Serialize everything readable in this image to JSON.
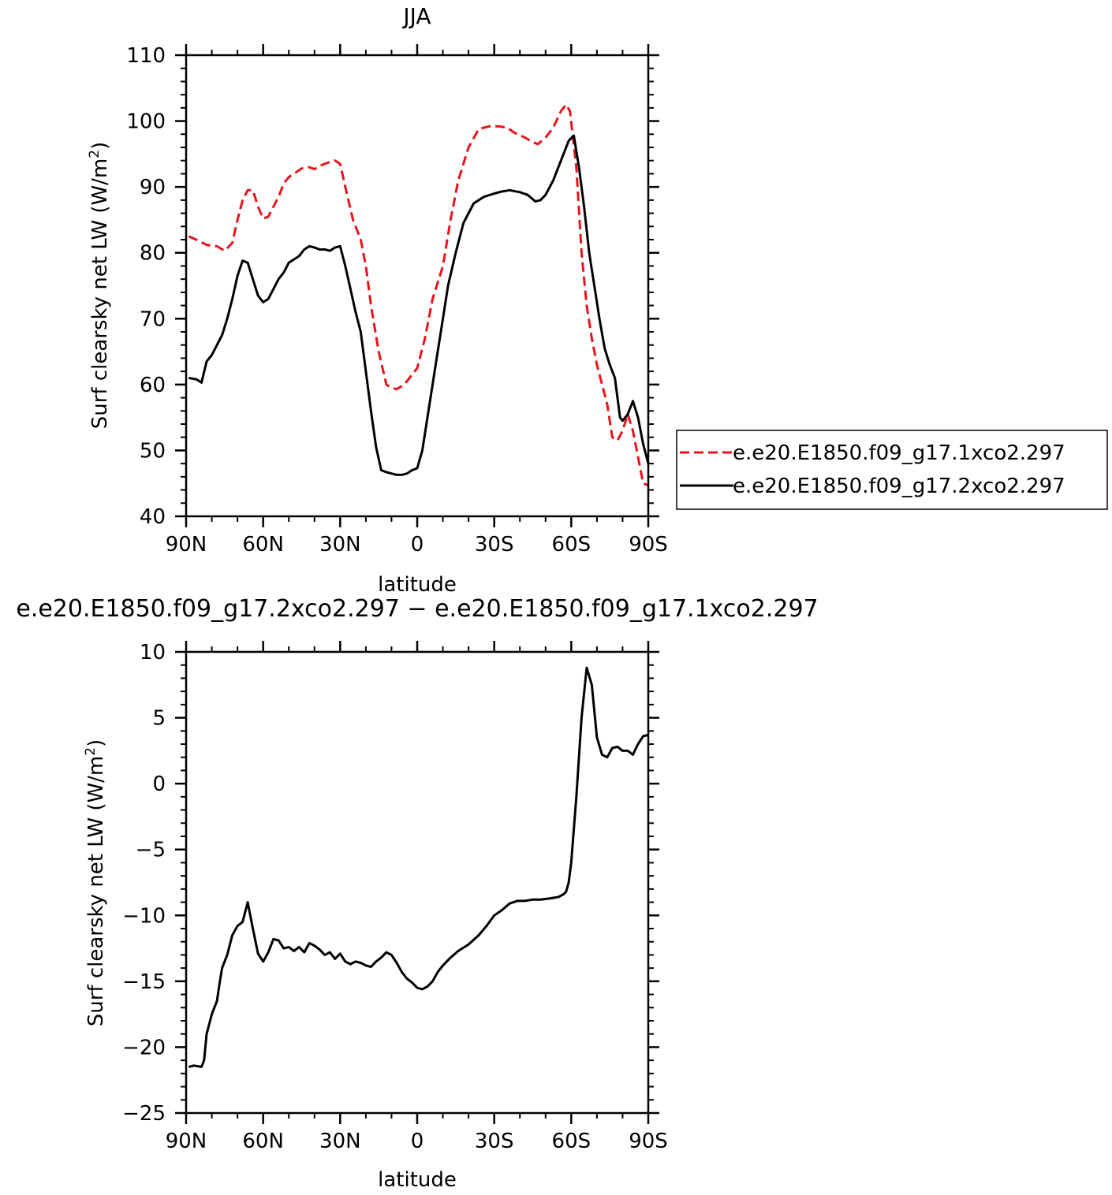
{
  "chart_data": [
    {
      "type": "line",
      "title": "JJA",
      "xlabel": "latitude",
      "ylabel": "Surf clearsky net LW (W/m²)",
      "xlim": [
        90,
        -90
      ],
      "ylim": [
        40,
        110
      ],
      "xticks": [
        90,
        60,
        30,
        0,
        -30,
        -60,
        -90
      ],
      "xtick_labels": [
        "90N",
        "60N",
        "30N",
        "0",
        "30S",
        "60S",
        "90S"
      ],
      "yticks": [
        40,
        50,
        60,
        70,
        80,
        90,
        100,
        110
      ],
      "ytick_labels": [
        "40",
        "50",
        "60",
        "70",
        "80",
        "90",
        "100",
        "110"
      ],
      "legend_position": "right",
      "series": [
        {
          "name": "e.e20.E1850.f09_g17.1xco2.297",
          "color": "#e8131b",
          "dash": "dashed",
          "x": [
            89,
            85,
            82,
            78,
            75,
            72,
            70,
            68,
            66,
            64,
            62,
            60,
            58,
            56,
            54,
            52,
            50,
            48,
            45,
            42,
            40,
            38,
            36,
            34,
            32,
            30,
            28,
            25,
            22,
            20,
            18,
            15,
            12,
            10,
            8,
            5,
            2,
            0,
            -3,
            -6,
            -10,
            -13,
            -16,
            -20,
            -24,
            -28,
            -32,
            -35,
            -38,
            -42,
            -45,
            -47,
            -50,
            -53,
            -56,
            -58,
            -59.5,
            -62,
            -64,
            -66,
            -68,
            -70,
            -72,
            -74,
            -76,
            -78,
            -80,
            -82,
            -84,
            -86,
            -88,
            -90
          ],
          "y": [
            82.5,
            81.8,
            81.2,
            81,
            80.3,
            81.5,
            85,
            88,
            89.5,
            89.5,
            87,
            85.2,
            85.5,
            87,
            88.5,
            90.5,
            91.5,
            92,
            92.8,
            93,
            92.7,
            93.2,
            93.5,
            93.8,
            94,
            93.5,
            90,
            85,
            82,
            78,
            72,
            65,
            60,
            59.5,
            59.3,
            60,
            61.5,
            62.5,
            67,
            73,
            78,
            85,
            91,
            96,
            98.8,
            99.2,
            99.2,
            99,
            98.2,
            97.5,
            96.8,
            96.5,
            97.5,
            99,
            101.5,
            102.5,
            101.5,
            93,
            80,
            72,
            67,
            63,
            60,
            57,
            52,
            51.5,
            53,
            55.5,
            53,
            49,
            45,
            44.7
          ]
        },
        {
          "name": "e.e20.E1850.f09_g17.2xco2.297",
          "color": "#000000",
          "dash": "solid",
          "x": [
            89,
            86,
            84,
            82,
            80,
            78,
            76,
            74,
            72,
            70,
            68,
            66,
            64,
            62,
            60,
            58,
            56,
            54,
            52,
            50,
            48,
            46,
            44,
            42,
            40,
            38,
            36,
            34,
            32,
            30,
            28,
            26,
            24,
            22,
            20,
            18,
            16,
            14,
            12,
            10,
            8,
            6,
            4,
            2,
            0,
            -2,
            -4,
            -6,
            -8,
            -10,
            -12,
            -15,
            -18,
            -22,
            -26,
            -30,
            -33,
            -36,
            -40,
            -43,
            -46,
            -48,
            -50,
            -53,
            -56,
            -59,
            -61,
            -63,
            -65,
            -67,
            -69,
            -71,
            -73,
            -75,
            -77,
            -79,
            -80,
            -82,
            -84,
            -86,
            -88,
            -90
          ],
          "y": [
            61,
            60.8,
            60.3,
            63.5,
            64.5,
            66,
            67.5,
            70,
            73,
            76.5,
            78.8,
            78.5,
            76,
            73.5,
            72.5,
            73,
            74.5,
            76,
            77,
            78.5,
            79,
            79.5,
            80.5,
            81,
            80.8,
            80.5,
            80.5,
            80.3,
            80.8,
            81,
            78,
            74.5,
            71,
            68,
            62,
            56,
            50.5,
            47,
            46.7,
            46.5,
            46.3,
            46.3,
            46.5,
            47,
            47.3,
            50,
            55,
            60,
            65,
            70,
            75,
            80,
            84.5,
            87.5,
            88.5,
            89,
            89.3,
            89.5,
            89.2,
            88.8,
            87.8,
            88,
            88.8,
            91,
            94,
            97,
            97.8,
            93,
            87,
            80,
            75,
            70,
            65.5,
            63,
            61,
            55,
            54.5,
            55.5,
            57.5,
            55,
            51,
            48
          ]
        }
      ]
    },
    {
      "type": "line",
      "title": "e.e20.E1850.f09_g17.2xco2.297 − e.e20.E1850.f09_g17.1xco2.297",
      "xlabel": "latitude",
      "ylabel": "Surf clearsky net LW (W/m²)",
      "xlim": [
        90,
        -90
      ],
      "ylim": [
        -25,
        10
      ],
      "xticks": [
        90,
        60,
        30,
        0,
        -30,
        -60,
        -90
      ],
      "xtick_labels": [
        "90N",
        "60N",
        "30N",
        "0",
        "30S",
        "60S",
        "90S"
      ],
      "yticks": [
        -25,
        -20,
        -15,
        -10,
        -5,
        0,
        5,
        10
      ],
      "ytick_labels": [
        "−25",
        "−20",
        "−15",
        "−10",
        "−5",
        "0",
        "5",
        "10"
      ],
      "series": [
        {
          "color": "#000000",
          "dash": "solid",
          "x": [
            89,
            87,
            84,
            83,
            82,
            80,
            78,
            77,
            76,
            74,
            72,
            70,
            68,
            66,
            64,
            62,
            60,
            58,
            56,
            54,
            52,
            50,
            48,
            46,
            44,
            42,
            40,
            38,
            36,
            34,
            32,
            30,
            28,
            26,
            24,
            22,
            20,
            18,
            16,
            14,
            12,
            10,
            8,
            6,
            4,
            2,
            0,
            -2,
            -4,
            -6,
            -8,
            -10,
            -13,
            -16,
            -20,
            -24,
            -27,
            -30,
            -33,
            -36,
            -39,
            -42,
            -45,
            -48,
            -52,
            -55,
            -57,
            -58,
            -59,
            -60,
            -62,
            -64,
            -66,
            -68,
            -70,
            -72,
            -74,
            -76,
            -78,
            -80,
            -82,
            -84,
            -86,
            -88,
            -90
          ],
          "y": [
            -21.5,
            -21.4,
            -21.5,
            -21,
            -19,
            -17.5,
            -16.5,
            -15.2,
            -14,
            -13,
            -11.5,
            -10.8,
            -10.5,
            -9,
            -11,
            -12.9,
            -13.5,
            -12.8,
            -11.8,
            -11.9,
            -12.5,
            -12.4,
            -12.7,
            -12.4,
            -12.8,
            -12.1,
            -12.3,
            -12.6,
            -13,
            -12.8,
            -13.3,
            -12.9,
            -13.5,
            -13.7,
            -13.5,
            -13.6,
            -13.8,
            -13.9,
            -13.5,
            -13.2,
            -12.8,
            -13,
            -13.6,
            -14.3,
            -14.8,
            -15.1,
            -15.5,
            -15.6,
            -15.4,
            -15,
            -14.3,
            -13.8,
            -13.2,
            -12.7,
            -12.2,
            -11.5,
            -10.8,
            -10,
            -9.6,
            -9.1,
            -8.9,
            -8.9,
            -8.8,
            -8.8,
            -8.7,
            -8.6,
            -8.4,
            -8.2,
            -7.5,
            -6,
            -1,
            5,
            8.8,
            7.5,
            3.5,
            2.2,
            2,
            2.7,
            2.8,
            2.5,
            2.5,
            2.2,
            3,
            3.6,
            3.7
          ]
        }
      ]
    }
  ]
}
